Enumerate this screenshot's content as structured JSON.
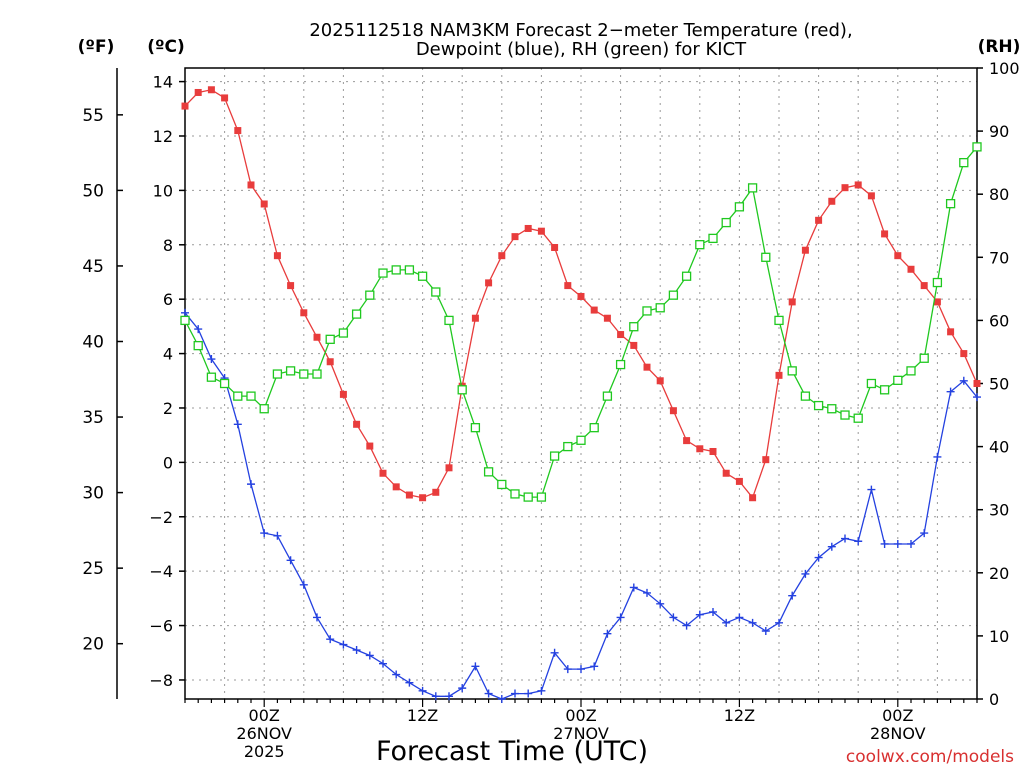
{
  "chart_data": {
    "type": "line",
    "title": "2025112518 NAM3KM Forecast 2-meter Temperature (red), Dewpoint (blue), RH (green) for KICT",
    "title_lines": [
      "2025112518 NAM3KM Forecast 2−meter Temperature (red),",
      "Dewpoint (blue), RH (green) for KICT"
    ],
    "xlabel": "Forecast Time (UTC)",
    "left_unit_f": "(ºF)",
    "left_unit_c": "(ºC)",
    "right_unit": "(RH)",
    "watermark": "coolwx.com/models",
    "x_hours": [
      -6,
      54
    ],
    "x_ticks": [
      {
        "hour": 0,
        "lines": [
          "00Z",
          "26NOV",
          "2025"
        ]
      },
      {
        "hour": 12,
        "lines": [
          "12Z"
        ]
      },
      {
        "hour": 24,
        "lines": [
          "00Z",
          "27NOV"
        ]
      },
      {
        "hour": 36,
        "lines": [
          "12Z"
        ]
      },
      {
        "hour": 48,
        "lines": [
          "00Z",
          "28NOV"
        ]
      }
    ],
    "y_celsius": {
      "range": [
        -8.7,
        14.5
      ],
      "ticks": [
        -8,
        -6,
        -4,
        -2,
        0,
        2,
        4,
        6,
        8,
        10,
        12,
        14
      ]
    },
    "y_fahrenheit": {
      "ticks": [
        20,
        25,
        30,
        35,
        40,
        45,
        50,
        55
      ]
    },
    "y_rh": {
      "range": [
        0,
        100
      ],
      "ticks": [
        0,
        10,
        20,
        30,
        40,
        50,
        60,
        70,
        80,
        90,
        100
      ]
    },
    "hours": [
      -6,
      -5,
      -4,
      -3,
      -2,
      -1,
      0,
      1,
      2,
      3,
      4,
      5,
      6,
      7,
      8,
      9,
      10,
      11,
      12,
      13,
      14,
      15,
      16,
      17,
      18,
      19,
      20,
      21,
      22,
      23,
      24,
      25,
      26,
      27,
      28,
      29,
      30,
      31,
      32,
      33,
      34,
      35,
      36,
      37,
      38,
      39,
      40,
      41,
      42,
      43,
      44,
      45,
      46,
      47,
      48,
      49,
      50,
      51,
      52,
      53,
      54
    ],
    "series": [
      {
        "name": "Temperature",
        "unit": "C",
        "color": "#e83c3c",
        "marker": "filled-square",
        "values": [
          13.1,
          13.6,
          13.7,
          13.4,
          12.2,
          10.2,
          9.5,
          7.6,
          6.5,
          5.5,
          4.6,
          3.7,
          2.5,
          1.4,
          0.6,
          -0.4,
          -0.9,
          -1.2,
          -1.3,
          -1.1,
          -0.2,
          2.8,
          5.3,
          6.6,
          7.6,
          8.3,
          8.6,
          8.5,
          7.9,
          6.5,
          6.1,
          5.6,
          5.3,
          4.7,
          4.3,
          3.5,
          3.0,
          1.9,
          0.8,
          0.5,
          0.4,
          -0.4,
          -0.7,
          -1.3,
          0.1,
          3.2,
          5.9,
          7.8,
          8.9,
          9.6,
          10.1,
          10.2,
          9.8,
          8.4,
          7.6,
          7.1,
          6.5,
          5.9,
          4.8,
          4.0,
          2.9
        ]
      },
      {
        "name": "Dewpoint",
        "unit": "C",
        "color": "#2441e0",
        "marker": "plus",
        "values": [
          5.5,
          4.9,
          3.8,
          3.1,
          1.4,
          -0.8,
          -2.6,
          -2.7,
          -3.6,
          -4.5,
          -5.7,
          -6.5,
          -6.7,
          -6.9,
          -7.1,
          -7.4,
          -7.8,
          -8.1,
          -8.4,
          -8.6,
          -8.6,
          -8.3,
          -7.5,
          -8.5,
          -8.7,
          -8.5,
          -8.5,
          -8.4,
          -7.0,
          -7.6,
          -7.6,
          -7.5,
          -6.3,
          -5.7,
          -4.6,
          -4.8,
          -5.2,
          -5.7,
          -6.0,
          -5.6,
          -5.5,
          -5.9,
          -5.7,
          -5.9,
          -6.2,
          -5.9,
          -4.9,
          -4.1,
          -3.5,
          -3.1,
          -2.8,
          -2.9,
          -1.0,
          -3.0,
          -3.0,
          -3.0,
          -2.6,
          0.2,
          2.6,
          3.0,
          2.4
        ]
      },
      {
        "name": "RH",
        "unit": "%",
        "color": "#1fc81f",
        "marker": "open-square",
        "values": [
          60,
          56,
          51,
          50,
          48,
          48,
          46,
          51.5,
          52,
          51.5,
          51.5,
          57,
          58,
          61,
          64,
          67.5,
          68,
          68,
          67,
          64.5,
          60,
          49,
          43,
          36,
          34,
          32.5,
          32,
          32,
          38.5,
          40,
          41,
          43,
          48,
          53,
          59,
          61.5,
          62,
          64,
          67,
          72,
          73,
          75.5,
          78,
          81,
          70,
          60,
          52,
          48,
          46.5,
          46,
          45,
          44.5,
          50,
          49,
          50.5,
          52,
          54,
          66,
          78.5,
          85,
          87.5
        ]
      }
    ]
  }
}
